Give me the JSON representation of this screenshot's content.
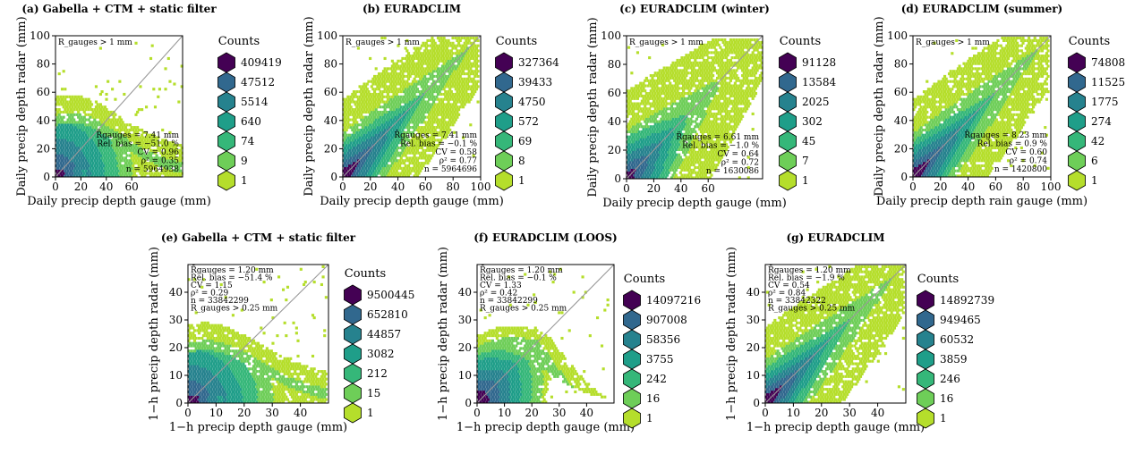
{
  "chart_data": [
    {
      "type": "hexbin",
      "title": "(a) Gabella + CTM + static filter",
      "xlabel": "Daily precip depth gauge (mm)",
      "ylabel": "Daily precip depth radar (mm)",
      "xlim": [
        0,
        100
      ],
      "ylim": [
        0,
        100
      ],
      "xticks": [
        0,
        20,
        40,
        60
      ],
      "yticks": [
        0,
        20,
        40,
        60,
        80,
        100
      ],
      "threshold_label": "R_gauges > 1 mm",
      "stats": [
        "R̄gauges = 7.41 mm",
        "Rel. bias = −51.0 %",
        "CV = 0.96",
        "ρ² = 0.35",
        "n = 5964938"
      ],
      "legend_title": "Counts",
      "legend_values": [
        "409419",
        "47512",
        "5514",
        "640",
        "74",
        "9",
        "1"
      ],
      "pattern": "under"
    },
    {
      "type": "hexbin",
      "title": "(b) EURADCLIM",
      "xlabel": "Daily precip depth gauge (mm)",
      "ylabel": "Daily precip depth radar (mm)",
      "xlim": [
        0,
        100
      ],
      "ylim": [
        0,
        100
      ],
      "xticks": [
        0,
        20,
        40,
        60,
        80,
        100
      ],
      "yticks": [
        0,
        20,
        40,
        60,
        80,
        100
      ],
      "threshold_label": "R_gauges > 1 mm",
      "stats": [
        "R̄gauges = 7.41 mm",
        "Rel. bias = −0.1 %",
        "CV = 0.58",
        "ρ² = 0.77",
        "n = 5964696"
      ],
      "legend_title": "Counts",
      "legend_values": [
        "327364",
        "39433",
        "4750",
        "572",
        "69",
        "8",
        "1"
      ],
      "pattern": "diag"
    },
    {
      "type": "hexbin",
      "title": "(c) EURADCLIM (winter)",
      "xlabel": "Daily precip depth gauge (mm)",
      "ylabel": "Daily precip depth radar (mm)",
      "xlim": [
        0,
        100
      ],
      "ylim": [
        0,
        100
      ],
      "xticks": [
        0,
        20,
        40,
        60
      ],
      "yticks": [
        0,
        20,
        40,
        60,
        80,
        100
      ],
      "threshold_label": "R_gauges > 1 mm",
      "stats": [
        "R̄gauges = 6.61 mm",
        "Rel. bias = −1.0 %",
        "CV = 0.64",
        "ρ² = 0.72",
        "n = 1630086"
      ],
      "legend_title": "Counts",
      "legend_values": [
        "91128",
        "13584",
        "2025",
        "302",
        "45",
        "7",
        "1"
      ],
      "pattern": "diagwide"
    },
    {
      "type": "hexbin",
      "title": "(d) EURADCLIM (summer)",
      "xlabel": "Daily precip depth rain gauge (mm)",
      "ylabel": "Daily precip depth radar (mm)",
      "xlim": [
        0,
        100
      ],
      "ylim": [
        0,
        100
      ],
      "xticks": [
        0,
        20,
        40,
        60,
        80,
        100
      ],
      "yticks": [
        0,
        20,
        40,
        60,
        80,
        100
      ],
      "threshold_label": "R_gauges > 1 mm",
      "stats": [
        "R̄gauges = 8.23 mm",
        "Rel. bias = 0.9 %",
        "CV = 0.60",
        "ρ² = 0.74",
        "n = 1420800"
      ],
      "legend_title": "Counts",
      "legend_values": [
        "74808",
        "11525",
        "1775",
        "274",
        "42",
        "6",
        "1"
      ],
      "pattern": "diag"
    },
    {
      "type": "hexbin",
      "title": "(e) Gabella + CTM + static filter",
      "xlabel": "1−h precip depth gauge (mm)",
      "ylabel": "1−h precip depth radar (mm)",
      "xlim": [
        0,
        50
      ],
      "ylim": [
        0,
        50
      ],
      "xticks": [
        0,
        10,
        20,
        30,
        40
      ],
      "yticks": [
        0,
        10,
        20,
        30,
        40
      ],
      "threshold_label": "R_gauges > 0.25 mm",
      "stats": [
        "R̄gauges = 1.20 mm",
        "Rel. bias = −51.4 %",
        "CV = 1.15",
        "ρ² = 0.29",
        "n = 33842299"
      ],
      "legend_title": "Counts",
      "legend_values": [
        "9500445",
        "652810",
        "44857",
        "3082",
        "212",
        "15",
        "1"
      ],
      "pattern": "under"
    },
    {
      "type": "hexbin",
      "title": "(f) EURADCLIM (LOOS)",
      "xlabel": "1−h precip depth gauge (mm)",
      "ylabel": "1−h precip depth radar (mm)",
      "xlim": [
        0,
        50
      ],
      "ylim": [
        0,
        50
      ],
      "xticks": [
        0,
        10,
        20,
        30,
        40
      ],
      "yticks": [
        0,
        10,
        20,
        30,
        40
      ],
      "threshold_label": "R_gauges > 0.25 mm",
      "stats": [
        "R̄gauges = 1.20 mm",
        "Rel. bias = −0.1 %",
        "CV = 1.33",
        "ρ² = 0.42",
        "n = 33842299"
      ],
      "legend_title": "Counts",
      "legend_values": [
        "14097216",
        "907008",
        "58356",
        "3755",
        "242",
        "16",
        "1"
      ],
      "pattern": "blob"
    },
    {
      "type": "hexbin",
      "title": "(g) EURADCLIM",
      "xlabel": "1−h precip depth gauge (mm)",
      "ylabel": "1−h precip depth radar (mm)",
      "xlim": [
        0,
        50
      ],
      "ylim": [
        0,
        50
      ],
      "xticks": [
        0,
        10,
        20,
        30,
        40
      ],
      "yticks": [
        0,
        10,
        20,
        30,
        40
      ],
      "threshold_label": "R_gauges > 0.25 mm",
      "stats": [
        "R̄gauges = 1.20 mm",
        "Rel. bias = −1.9 %",
        "CV = 0.54",
        "ρ² = 0.84",
        "n = 33842322"
      ],
      "legend_title": "Counts",
      "legend_values": [
        "14892739",
        "949465",
        "60532",
        "3859",
        "246",
        "16",
        "1"
      ],
      "pattern": "diag"
    }
  ],
  "colors": [
    "#440154",
    "#31688e",
    "#26828e",
    "#1f9e89",
    "#35b779",
    "#6ece58",
    "#b5de2b"
  ],
  "one_to_one_line_color": "#999999"
}
